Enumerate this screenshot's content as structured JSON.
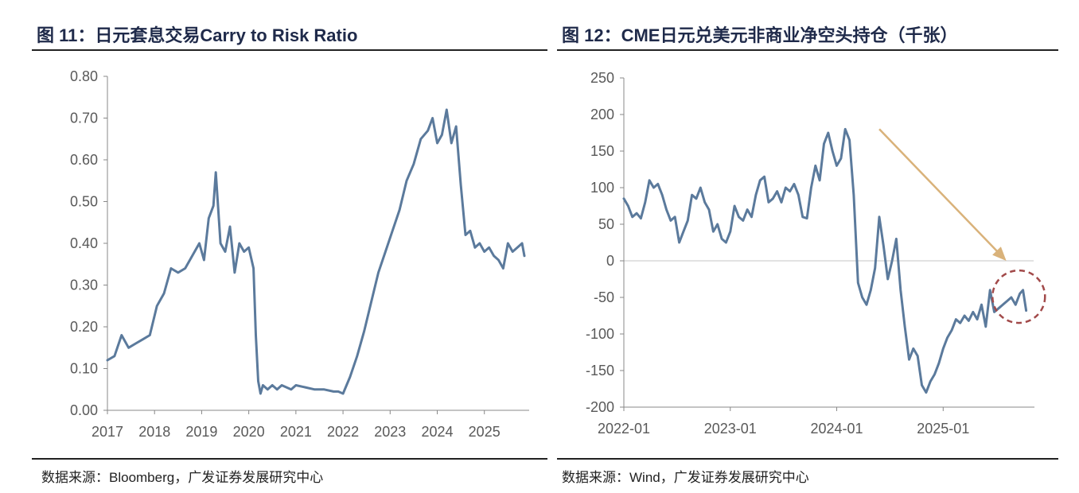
{
  "figure11": {
    "title": "图 11：日元套息交易Carry to Risk Ratio",
    "source": "数据来源：Bloomberg，广发证券发展研究中心"
  },
  "figure12": {
    "title": "图 12：CME日元兑美元非商业净空头持仓（千张）",
    "source": "数据来源：Wind，广发证券发展研究中心"
  },
  "colors": {
    "line": "#5b7a9c",
    "arrow": "#d9b27a",
    "circle": "#a24a4a",
    "axis": "#888888",
    "zero": "#d9d9d9"
  },
  "chart_data": [
    {
      "type": "line",
      "title": "日元套息交易Carry to Risk Ratio",
      "xlabel": "",
      "ylabel": "",
      "xlim": [
        2017.0,
        2025.9
      ],
      "ylim": [
        0,
        0.8
      ],
      "x_ticks": [
        2017,
        2018,
        2019,
        2020,
        2021,
        2022,
        2023,
        2024,
        2025
      ],
      "x_tick_labels": [
        "2017",
        "2018",
        "2019",
        "2020",
        "2021",
        "2022",
        "2023",
        "2024",
        "2025"
      ],
      "y_ticks": [
        0,
        0.1,
        0.2,
        0.3,
        0.4,
        0.5,
        0.6,
        0.7,
        0.8
      ],
      "y_tick_labels": [
        "0.00",
        "0.10",
        "0.20",
        "0.30",
        "0.40",
        "0.50",
        "0.60",
        "0.70",
        "0.80"
      ],
      "series": [
        {
          "name": "Carry to Risk Ratio",
          "x": [
            2017.0,
            2017.15,
            2017.3,
            2017.45,
            2017.6,
            2017.75,
            2017.9,
            2018.05,
            2018.2,
            2018.35,
            2018.5,
            2018.65,
            2018.8,
            2018.95,
            2019.05,
            2019.15,
            2019.25,
            2019.3,
            2019.4,
            2019.5,
            2019.6,
            2019.7,
            2019.8,
            2019.9,
            2020.0,
            2020.1,
            2020.15,
            2020.2,
            2020.25,
            2020.3,
            2020.4,
            2020.5,
            2020.6,
            2020.7,
            2020.8,
            2020.9,
            2021.0,
            2021.2,
            2021.4,
            2021.6,
            2021.8,
            2021.9,
            2022.0,
            2022.15,
            2022.3,
            2022.45,
            2022.6,
            2022.75,
            2022.9,
            2023.05,
            2023.2,
            2023.35,
            2023.5,
            2023.65,
            2023.8,
            2023.9,
            2024.0,
            2024.1,
            2024.2,
            2024.3,
            2024.4,
            2024.5,
            2024.6,
            2024.7,
            2024.8,
            2024.9,
            2025.0,
            2025.1,
            2025.2,
            2025.3,
            2025.4,
            2025.5,
            2025.6,
            2025.7,
            2025.8,
            2025.85
          ],
          "values": [
            0.12,
            0.13,
            0.18,
            0.15,
            0.16,
            0.17,
            0.18,
            0.25,
            0.28,
            0.34,
            0.33,
            0.34,
            0.37,
            0.4,
            0.36,
            0.46,
            0.49,
            0.57,
            0.4,
            0.38,
            0.44,
            0.33,
            0.4,
            0.38,
            0.39,
            0.34,
            0.18,
            0.07,
            0.04,
            0.06,
            0.05,
            0.06,
            0.05,
            0.06,
            0.055,
            0.05,
            0.06,
            0.055,
            0.05,
            0.05,
            0.045,
            0.045,
            0.04,
            0.08,
            0.13,
            0.19,
            0.26,
            0.33,
            0.38,
            0.43,
            0.48,
            0.55,
            0.59,
            0.65,
            0.67,
            0.7,
            0.64,
            0.66,
            0.72,
            0.64,
            0.68,
            0.54,
            0.42,
            0.43,
            0.39,
            0.4,
            0.38,
            0.39,
            0.37,
            0.36,
            0.34,
            0.4,
            0.38,
            0.39,
            0.4,
            0.37
          ]
        }
      ]
    },
    {
      "type": "line",
      "title": "CME日元兑美元非商业净空头持仓（千张）",
      "xlabel": "",
      "ylabel": "",
      "xlim": [
        2022.0,
        2025.85
      ],
      "ylim": [
        -200,
        250
      ],
      "x_ticks": [
        2022.0,
        2023.0,
        2024.0,
        2025.0
      ],
      "x_tick_labels": [
        "2022-01",
        "2023-01",
        "2024-01",
        "2025-01"
      ],
      "y_ticks": [
        -200,
        -150,
        -100,
        -50,
        0,
        50,
        100,
        150,
        200,
        250
      ],
      "y_tick_labels": [
        "-200",
        "-150",
        "-100",
        "-50",
        "0",
        "50",
        "100",
        "150",
        "200",
        "250"
      ],
      "series": [
        {
          "name": "净空头持仓",
          "x": [
            2022.0,
            2022.04,
            2022.08,
            2022.12,
            2022.16,
            2022.2,
            2022.24,
            2022.28,
            2022.32,
            2022.36,
            2022.4,
            2022.44,
            2022.48,
            2022.52,
            2022.56,
            2022.6,
            2022.64,
            2022.68,
            2022.72,
            2022.76,
            2022.8,
            2022.84,
            2022.88,
            2022.92,
            2022.96,
            2023.0,
            2023.04,
            2023.08,
            2023.12,
            2023.16,
            2023.2,
            2023.24,
            2023.28,
            2023.32,
            2023.36,
            2023.4,
            2023.44,
            2023.48,
            2023.52,
            2023.56,
            2023.6,
            2023.64,
            2023.68,
            2023.72,
            2023.76,
            2023.8,
            2023.84,
            2023.88,
            2023.92,
            2023.96,
            2024.0,
            2024.04,
            2024.08,
            2024.12,
            2024.16,
            2024.2,
            2024.24,
            2024.28,
            2024.32,
            2024.36,
            2024.4,
            2024.44,
            2024.48,
            2024.52,
            2024.56,
            2024.6,
            2024.64,
            2024.68,
            2024.72,
            2024.76,
            2024.8,
            2024.84,
            2024.88,
            2024.92,
            2024.96,
            2025.0,
            2025.04,
            2025.08,
            2025.12,
            2025.16,
            2025.2,
            2025.24,
            2025.28,
            2025.32,
            2025.36,
            2025.4,
            2025.44,
            2025.48,
            2025.52,
            2025.56,
            2025.6,
            2025.64,
            2025.68,
            2025.72,
            2025.75,
            2025.78
          ],
          "values": [
            85,
            75,
            60,
            65,
            58,
            80,
            110,
            100,
            105,
            90,
            70,
            55,
            60,
            25,
            40,
            55,
            90,
            85,
            100,
            80,
            70,
            40,
            50,
            30,
            25,
            40,
            75,
            60,
            55,
            70,
            60,
            90,
            110,
            115,
            80,
            85,
            95,
            80,
            100,
            95,
            105,
            90,
            60,
            58,
            100,
            130,
            110,
            160,
            175,
            150,
            130,
            140,
            180,
            165,
            90,
            -30,
            -50,
            -60,
            -40,
            -10,
            60,
            20,
            -25,
            0,
            30,
            -40,
            -90,
            -135,
            -120,
            -130,
            -170,
            -180,
            -165,
            -155,
            -140,
            -120,
            -105,
            -95,
            -80,
            -85,
            -75,
            -82,
            -70,
            -80,
            -60,
            -90,
            -40,
            -70,
            -65,
            -60,
            -55,
            -50,
            -60,
            -45,
            -40,
            -68
          ]
        }
      ]
    }
  ]
}
